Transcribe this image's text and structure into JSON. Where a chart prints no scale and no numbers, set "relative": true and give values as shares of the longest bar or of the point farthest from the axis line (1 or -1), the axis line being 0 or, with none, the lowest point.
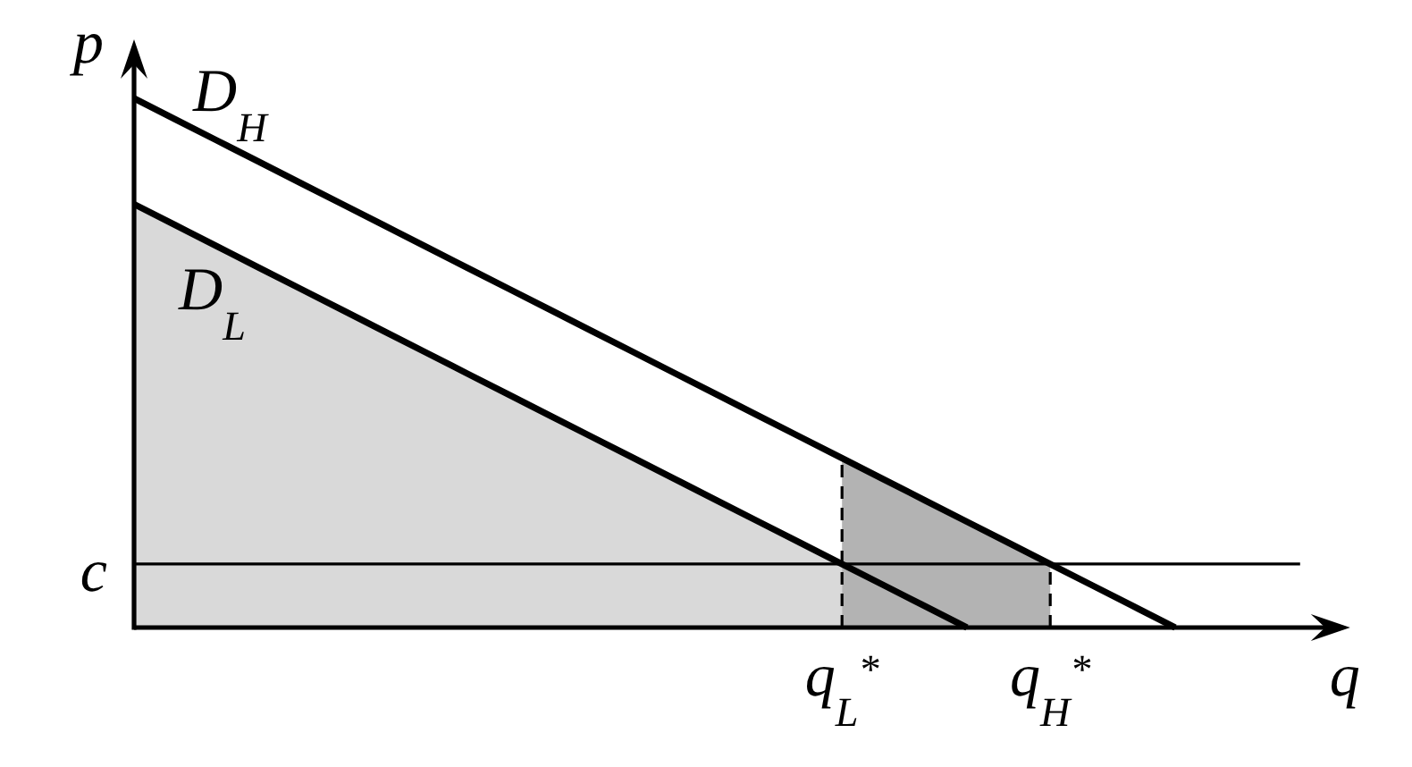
{
  "chart_data": {
    "type": "line",
    "relative": true,
    "xlabel": "q",
    "ylabel": "p",
    "categories": [
      null,
      null,
      null,
      null,
      null,
      null,
      null,
      null,
      null,
      null,
      null,
      null,
      null,
      null,
      null,
      null,
      null,
      "q$_{L}$$^{*}$",
      null,
      null,
      null,
      null,
      "q$_{H}$$^{*}$",
      null,
      null,
      null,
      null,
      null,
      null
    ],
    "series": [
      {
        "type": "area",
        "color": "#d9d9d9",
        "values": [
          0.8,
          0.76,
          0.72,
          0.68,
          0.64,
          0.6,
          0.56,
          0.52,
          0.48,
          0.44,
          0.4,
          0.36,
          0.32,
          0.28,
          0.24,
          0.2,
          0.16,
          0.12,
          null,
          null,
          null,
          null,
          null,
          null,
          null,
          null,
          null,
          null,
          null
        ]
      },
      {
        "type": "area",
        "color": "#b3b3b3",
        "values": [
          null,
          null,
          null,
          null,
          null,
          null,
          null,
          null,
          null,
          null,
          null,
          null,
          null,
          null,
          null,
          null,
          null,
          0.32,
          0.28,
          0.24,
          0.2,
          0.16,
          0.12,
          null,
          null,
          null,
          null,
          null,
          null
        ]
      },
      {
        "name": "D$_{H}$",
        "color": "#000000",
        "values": [
          1,
          0.96,
          0.92,
          0.88,
          0.84,
          0.8,
          0.76,
          0.72,
          0.68,
          0.64,
          0.6,
          0.56,
          0.52,
          0.48,
          0.44,
          0.4,
          0.36,
          0.32,
          0.28,
          0.24,
          0.2,
          0.16,
          0.12,
          0.08,
          0.04,
          0,
          null,
          null,
          null
        ]
      },
      {
        "name": "D$_{L}$",
        "color": "#000000",
        "values": [
          0.8,
          0.76,
          0.72,
          0.68,
          0.64,
          0.6,
          0.56,
          0.52,
          0.48,
          0.44,
          0.4,
          0.36,
          0.32,
          0.28,
          0.24,
          0.2,
          0.16,
          0.12,
          0.08,
          0.04,
          0,
          null,
          null,
          null,
          null,
          null,
          null,
          null,
          null
        ]
      }
    ],
    "ref_lines": [
      {
        "axis": "y",
        "value": 0.12,
        "label": "c",
        "color": "#000000"
      },
      {
        "axis": "x",
        "value": "q$_{L}$$^{*}$",
        "color": "#000000",
        "line_style": "dashed"
      },
      {
        "axis": "x",
        "value": "q$_{H}$$^{*}$",
        "color": "#000000",
        "line_style": "dashed"
      }
    ]
  }
}
